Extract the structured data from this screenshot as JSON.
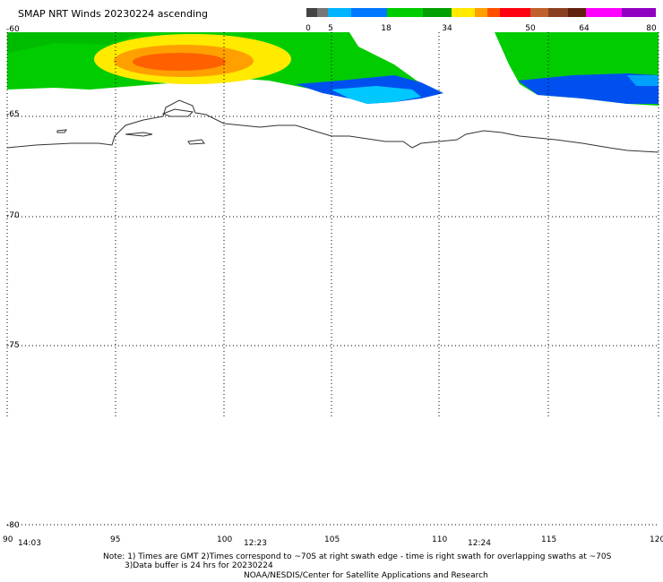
{
  "title": "SMAP NRT Winds 20230224 ascending",
  "colorbar": {
    "ticks": [
      "0",
      "5",
      "18",
      "34",
      "50",
      "64",
      "80"
    ],
    "colors": [
      "#555555",
      "#888888",
      "#00a0ff",
      "#0070ff",
      "#00d000",
      "#00b000",
      "#ffee00",
      "#ffa000",
      "#ff5000",
      "#ff0000",
      "#e00000",
      "#a0522d",
      "#703010",
      "#ff00ff",
      "#9000c0"
    ]
  },
  "map": {
    "lat_labels": [
      "-60",
      "-65",
      "-70",
      "-75",
      "-80"
    ],
    "lon_labels": [
      "90",
      "95",
      "100",
      "105",
      "110",
      "115",
      "120"
    ],
    "time_labels": [
      "14:03",
      "12:23",
      "12:24"
    ]
  },
  "notes": {
    "line1": "Note: 1) Times are GMT 2)Times correspond to ~70S at right swath edge - time is right swath for overlapping swaths at ~70S",
    "line2": "3)Data buffer is 24 hrs for 20230224",
    "line3": "NOAA/NESDIS/Center for Satellite Applications and Research"
  }
}
